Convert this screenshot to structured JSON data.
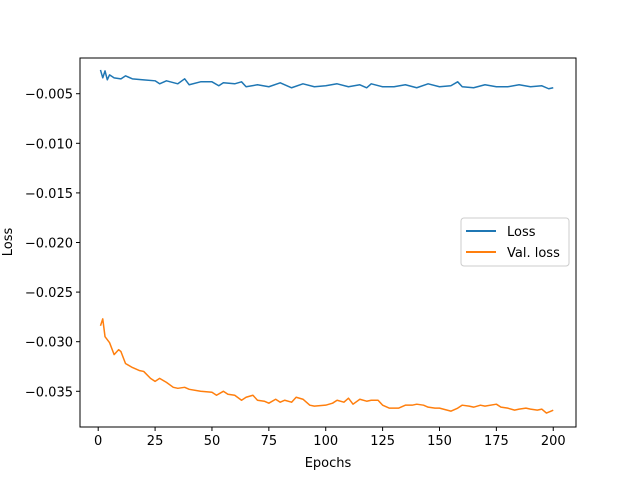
{
  "chart_data": {
    "type": "line",
    "xlabel": "Epochs",
    "ylabel": "Loss",
    "xlim": [
      -8,
      210
    ],
    "ylim": [
      -0.0386,
      -0.0014
    ],
    "x_ticks": [
      0,
      25,
      50,
      75,
      100,
      125,
      150,
      175,
      200
    ],
    "y_ticks": [
      -0.005,
      -0.01,
      -0.015,
      -0.02,
      -0.025,
      -0.03,
      -0.035
    ],
    "x_tick_labels": [
      "0",
      "25",
      "50",
      "75",
      "100",
      "125",
      "150",
      "175",
      "200"
    ],
    "y_tick_labels": [
      "−0.005",
      "−0.010",
      "−0.015",
      "−0.020",
      "−0.025",
      "−0.030",
      "−0.035"
    ],
    "legend_position": "center-right",
    "series": [
      {
        "name": "Loss",
        "color": "#1f77b4",
        "points": [
          [
            1,
            -0.0026
          ],
          [
            2,
            -0.0034
          ],
          [
            3,
            -0.0027
          ],
          [
            4,
            -0.0036
          ],
          [
            5,
            -0.0031
          ],
          [
            7,
            -0.0034
          ],
          [
            10,
            -0.0035
          ],
          [
            12,
            -0.0032
          ],
          [
            15,
            -0.0035
          ],
          [
            20,
            -0.0036
          ],
          [
            25,
            -0.0037
          ],
          [
            27,
            -0.004
          ],
          [
            30,
            -0.0037
          ],
          [
            35,
            -0.004
          ],
          [
            38,
            -0.0035
          ],
          [
            40,
            -0.0041
          ],
          [
            45,
            -0.0038
          ],
          [
            50,
            -0.0038
          ],
          [
            53,
            -0.0042
          ],
          [
            55,
            -0.0039
          ],
          [
            60,
            -0.004
          ],
          [
            63,
            -0.0038
          ],
          [
            65,
            -0.0043
          ],
          [
            70,
            -0.0041
          ],
          [
            75,
            -0.0043
          ],
          [
            80,
            -0.0039
          ],
          [
            85,
            -0.0044
          ],
          [
            90,
            -0.004
          ],
          [
            95,
            -0.0043
          ],
          [
            100,
            -0.0042
          ],
          [
            105,
            -0.004
          ],
          [
            110,
            -0.0043
          ],
          [
            115,
            -0.0041
          ],
          [
            118,
            -0.0044
          ],
          [
            120,
            -0.004
          ],
          [
            125,
            -0.0043
          ],
          [
            130,
            -0.0043
          ],
          [
            135,
            -0.0041
          ],
          [
            140,
            -0.0044
          ],
          [
            145,
            -0.004
          ],
          [
            150,
            -0.0043
          ],
          [
            155,
            -0.0042
          ],
          [
            158,
            -0.0038
          ],
          [
            160,
            -0.0043
          ],
          [
            165,
            -0.0044
          ],
          [
            170,
            -0.0041
          ],
          [
            175,
            -0.0043
          ],
          [
            180,
            -0.0043
          ],
          [
            185,
            -0.0041
          ],
          [
            190,
            -0.0043
          ],
          [
            195,
            -0.0042
          ],
          [
            198,
            -0.0045
          ],
          [
            200,
            -0.0044
          ]
        ]
      },
      {
        "name": "Val. loss",
        "color": "#ff7f0e",
        "points": [
          [
            1,
            -0.0284
          ],
          [
            2,
            -0.0277
          ],
          [
            3,
            -0.0295
          ],
          [
            5,
            -0.0301
          ],
          [
            7,
            -0.0313
          ],
          [
            9,
            -0.0308
          ],
          [
            10,
            -0.031
          ],
          [
            12,
            -0.0322
          ],
          [
            15,
            -0.0326
          ],
          [
            18,
            -0.0329
          ],
          [
            20,
            -0.033
          ],
          [
            23,
            -0.0337
          ],
          [
            25,
            -0.034
          ],
          [
            27,
            -0.0337
          ],
          [
            30,
            -0.0341
          ],
          [
            33,
            -0.0346
          ],
          [
            35,
            -0.0347
          ],
          [
            38,
            -0.0346
          ],
          [
            40,
            -0.0348
          ],
          [
            45,
            -0.035
          ],
          [
            50,
            -0.0351
          ],
          [
            52,
            -0.0354
          ],
          [
            55,
            -0.035
          ],
          [
            57,
            -0.0353
          ],
          [
            60,
            -0.0354
          ],
          [
            63,
            -0.0359
          ],
          [
            65,
            -0.0356
          ],
          [
            68,
            -0.0354
          ],
          [
            70,
            -0.0359
          ],
          [
            73,
            -0.036
          ],
          [
            75,
            -0.0362
          ],
          [
            78,
            -0.0358
          ],
          [
            80,
            -0.0361
          ],
          [
            82,
            -0.0359
          ],
          [
            85,
            -0.0361
          ],
          [
            87,
            -0.0356
          ],
          [
            90,
            -0.0358
          ],
          [
            93,
            -0.0364
          ],
          [
            95,
            -0.0365
          ],
          [
            100,
            -0.0364
          ],
          [
            103,
            -0.0362
          ],
          [
            105,
            -0.0359
          ],
          [
            108,
            -0.0361
          ],
          [
            110,
            -0.0357
          ],
          [
            112,
            -0.0363
          ],
          [
            115,
            -0.0358
          ],
          [
            118,
            -0.036
          ],
          [
            120,
            -0.0359
          ],
          [
            123,
            -0.0359
          ],
          [
            125,
            -0.0364
          ],
          [
            128,
            -0.0367
          ],
          [
            132,
            -0.0367
          ],
          [
            135,
            -0.0364
          ],
          [
            138,
            -0.0364
          ],
          [
            140,
            -0.0363
          ],
          [
            143,
            -0.0364
          ],
          [
            145,
            -0.0366
          ],
          [
            148,
            -0.0367
          ],
          [
            150,
            -0.0367
          ],
          [
            155,
            -0.037
          ],
          [
            158,
            -0.0367
          ],
          [
            160,
            -0.0364
          ],
          [
            163,
            -0.0365
          ],
          [
            165,
            -0.0366
          ],
          [
            168,
            -0.0364
          ],
          [
            170,
            -0.0365
          ],
          [
            175,
            -0.0363
          ],
          [
            177,
            -0.0366
          ],
          [
            180,
            -0.0367
          ],
          [
            183,
            -0.0369
          ],
          [
            185,
            -0.0368
          ],
          [
            188,
            -0.0367
          ],
          [
            190,
            -0.0368
          ],
          [
            193,
            -0.0369
          ],
          [
            195,
            -0.0368
          ],
          [
            197,
            -0.0372
          ],
          [
            199,
            -0.037
          ],
          [
            200,
            -0.0369
          ]
        ]
      }
    ]
  }
}
